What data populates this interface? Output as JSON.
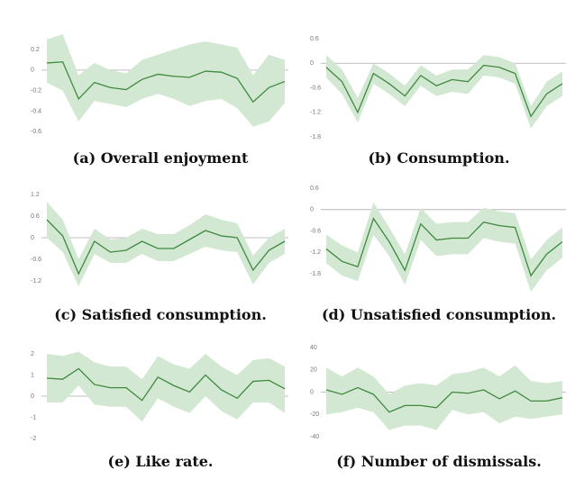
{
  "chart_data": [
    {
      "type": "line",
      "title": "(a) Overall enjoyment",
      "color": "#3f8a3f",
      "band_color": "#d2e8d2",
      "categories": [
        null,
        null,
        null,
        null,
        null,
        null,
        null,
        null,
        null,
        null,
        null,
        null,
        null,
        null,
        null,
        null
      ],
      "values": [
        0.07,
        0.08,
        -0.28,
        -0.12,
        -0.17,
        -0.19,
        -0.09,
        -0.04,
        -0.06,
        -0.07,
        -0.01,
        -0.02,
        -0.08,
        -0.31,
        -0.17,
        -0.11
      ],
      "upper": [
        0.3,
        0.35,
        -0.05,
        0.07,
        0.0,
        -0.03,
        0.1,
        0.15,
        0.2,
        0.25,
        0.28,
        0.25,
        0.22,
        -0.05,
        0.15,
        0.1
      ],
      "lower": [
        -0.12,
        -0.2,
        -0.5,
        -0.3,
        -0.33,
        -0.36,
        -0.28,
        -0.23,
        -0.28,
        -0.35,
        -0.3,
        -0.28,
        -0.37,
        -0.55,
        -0.5,
        -0.32
      ],
      "ylim": [
        -0.65,
        0.35
      ],
      "yticks": [
        0.2,
        0,
        -0.2,
        -0.4,
        -0.6
      ]
    },
    {
      "type": "line",
      "title": "(b) Consumption.",
      "color": "#3f8a3f",
      "band_color": "#d2e8d2",
      "categories": [
        null,
        null,
        null,
        null,
        null,
        null,
        null,
        null,
        null,
        null,
        null,
        null,
        null,
        null,
        null,
        null
      ],
      "values": [
        -0.1,
        -0.45,
        -1.2,
        -0.25,
        -0.5,
        -0.8,
        -0.3,
        -0.55,
        -0.4,
        -0.45,
        -0.05,
        -0.1,
        -0.25,
        -1.3,
        -0.75,
        -0.5
      ],
      "upper": [
        0.2,
        -0.15,
        -0.85,
        0.0,
        -0.25,
        -0.55,
        -0.05,
        -0.3,
        -0.15,
        -0.15,
        0.2,
        0.15,
        0.0,
        -1.05,
        -0.45,
        -0.2
      ],
      "lower": [
        -0.35,
        -0.75,
        -1.45,
        -0.5,
        -0.75,
        -1.05,
        -0.55,
        -0.8,
        -0.7,
        -0.75,
        -0.3,
        -0.35,
        -0.5,
        -1.6,
        -1.05,
        -0.8
      ],
      "ylim": [
        -1.8,
        0.6
      ],
      "yticks": [
        0.6,
        0,
        -0.6,
        -1.2,
        -1.8
      ]
    },
    {
      "type": "line",
      "title": "(c) Satisfied consumption.",
      "color": "#3f8a3f",
      "band_color": "#d2e8d2",
      "categories": [
        null,
        null,
        null,
        null,
        null,
        null,
        null,
        null,
        null,
        null,
        null,
        null,
        null,
        null,
        null,
        null
      ],
      "values": [
        0.5,
        0.05,
        -1.0,
        -0.1,
        -0.4,
        -0.35,
        -0.1,
        -0.3,
        -0.3,
        -0.05,
        0.2,
        0.05,
        0,
        -0.9,
        -0.35,
        -0.1
      ],
      "upper": [
        1.0,
        0.5,
        -0.6,
        0.25,
        -0.05,
        0.0,
        0.25,
        0.1,
        0.1,
        0.35,
        0.65,
        0.5,
        0.4,
        -0.5,
        0.0,
        0.25
      ],
      "lower": [
        0.0,
        -0.4,
        -1.35,
        -0.45,
        -0.7,
        -0.7,
        -0.45,
        -0.65,
        -0.65,
        -0.45,
        -0.25,
        -0.35,
        -0.4,
        -1.3,
        -0.7,
        -0.45
      ],
      "ylim": [
        -1.4,
        1.4
      ],
      "yticks": [
        1.2,
        0.6,
        0,
        -0.6,
        -1.2
      ]
    },
    {
      "type": "line",
      "title": "(d) Unsatisfied consumption.",
      "color": "#3f8a3f",
      "band_color": "#d2e8d2",
      "categories": [
        null,
        null,
        null,
        null,
        null,
        null,
        null,
        null,
        null,
        null,
        null,
        null,
        null,
        null,
        null,
        null
      ],
      "values": [
        -1.1,
        -1.45,
        -1.6,
        -0.25,
        -0.9,
        -1.7,
        -0.4,
        -0.85,
        -0.8,
        -0.8,
        -0.35,
        -0.45,
        -0.5,
        -1.85,
        -1.25,
        -0.9
      ],
      "upper": [
        -0.7,
        -1.0,
        -1.2,
        0.2,
        -0.5,
        -1.25,
        0.05,
        -0.4,
        -0.35,
        -0.35,
        0.05,
        -0.05,
        -0.1,
        -1.4,
        -0.85,
        -0.5
      ],
      "lower": [
        -1.5,
        -1.85,
        -2.0,
        -0.7,
        -1.3,
        -2.1,
        -0.85,
        -1.3,
        -1.25,
        -1.25,
        -0.8,
        -0.9,
        -0.95,
        -2.3,
        -1.7,
        -1.35
      ],
      "ylim": [
        -2.4,
        0.6
      ],
      "yticks": [
        0.6,
        0,
        -0.6,
        -1.2,
        -1.8
      ]
    },
    {
      "type": "line",
      "title": "(e) Like rate.",
      "color": "#3f8a3f",
      "band_color": "#d2e8d2",
      "categories": [
        null,
        null,
        null,
        null,
        null,
        null,
        null,
        null,
        null,
        null,
        null,
        null,
        null,
        null,
        null,
        null
      ],
      "values": [
        0.85,
        0.8,
        1.3,
        0.55,
        0.4,
        0.4,
        -0.2,
        0.9,
        0.5,
        0.2,
        1.0,
        0.3,
        -0.1,
        0.7,
        0.75,
        0.35
      ],
      "upper": [
        2.0,
        1.9,
        2.1,
        1.6,
        1.4,
        1.4,
        0.8,
        1.9,
        1.5,
        1.3,
        2.0,
        1.4,
        1.0,
        1.7,
        1.8,
        1.4
      ],
      "lower": [
        -0.3,
        -0.3,
        0.5,
        -0.4,
        -0.5,
        -0.5,
        -1.2,
        -0.1,
        -0.5,
        -0.8,
        0.0,
        -0.7,
        -1.1,
        -0.3,
        -0.3,
        -0.8
      ],
      "ylim": [
        -2,
        2
      ],
      "yticks": [
        2,
        1,
        0,
        -1,
        -2
      ]
    },
    {
      "type": "line",
      "title": "(f) Number of dismissals.",
      "color": "#3f8a3f",
      "band_color": "#d2e8d2",
      "categories": [
        null,
        null,
        null,
        null,
        null,
        null,
        null,
        null,
        null,
        null,
        null,
        null,
        null,
        null,
        null,
        null
      ],
      "values": [
        2,
        -2,
        4,
        -2,
        -18,
        -12,
        -12,
        -14,
        0,
        -1,
        2,
        -6,
        1,
        -8,
        -8,
        -5
      ],
      "upper": [
        22,
        14,
        22,
        14,
        -2,
        6,
        8,
        6,
        16,
        18,
        22,
        14,
        24,
        10,
        8,
        10
      ],
      "lower": [
        -20,
        -18,
        -14,
        -18,
        -34,
        -30,
        -30,
        -34,
        -16,
        -20,
        -18,
        -28,
        -22,
        -24,
        -22,
        -20
      ],
      "ylim": [
        -40,
        40
      ],
      "yticks": [
        40,
        20,
        0,
        -20,
        -40
      ]
    }
  ]
}
